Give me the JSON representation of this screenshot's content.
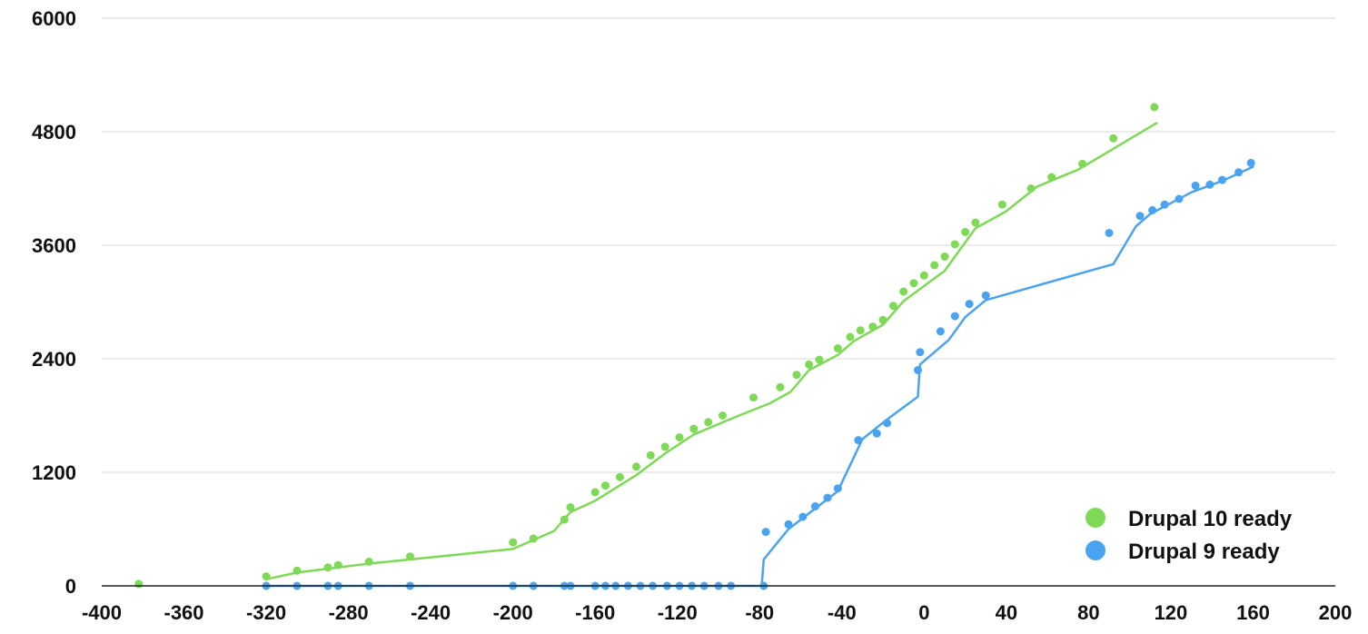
{
  "chart_data": {
    "type": "scatter",
    "title": "",
    "xlabel": "",
    "ylabel": "",
    "xlim": [
      -400,
      200
    ],
    "ylim": [
      0,
      6000
    ],
    "x_ticks": [
      -400,
      -360,
      -320,
      -280,
      -240,
      -200,
      -160,
      -120,
      -80,
      -40,
      0,
      40,
      80,
      120,
      160,
      200
    ],
    "y_ticks": [
      0,
      1200,
      2400,
      3600,
      4800,
      6000
    ],
    "grid": "horizontal",
    "legend_position": "bottom-right",
    "series": [
      {
        "name": "Drupal 10 ready",
        "color": "#7ed957",
        "points": [
          [
            -382,
            20
          ],
          [
            -320,
            100
          ],
          [
            -305,
            160
          ],
          [
            -290,
            195
          ],
          [
            -285,
            220
          ],
          [
            -270,
            255
          ],
          [
            -250,
            310
          ],
          [
            -200,
            460
          ],
          [
            -190,
            500
          ],
          [
            -175,
            700
          ],
          [
            -172,
            830
          ],
          [
            -160,
            990
          ],
          [
            -155,
            1060
          ],
          [
            -148,
            1150
          ],
          [
            -140,
            1260
          ],
          [
            -133,
            1380
          ],
          [
            -126,
            1470
          ],
          [
            -119,
            1570
          ],
          [
            -112,
            1660
          ],
          [
            -105,
            1730
          ],
          [
            -98,
            1800
          ],
          [
            -83,
            1990
          ],
          [
            -70,
            2100
          ],
          [
            -62,
            2230
          ],
          [
            -56,
            2340
          ],
          [
            -51,
            2390
          ],
          [
            -42,
            2510
          ],
          [
            -36,
            2630
          ],
          [
            -31,
            2700
          ],
          [
            -25,
            2740
          ],
          [
            -20,
            2810
          ],
          [
            -15,
            2960
          ],
          [
            -10,
            3110
          ],
          [
            -5,
            3200
          ],
          [
            0,
            3280
          ],
          [
            5,
            3390
          ],
          [
            10,
            3480
          ],
          [
            15,
            3610
          ],
          [
            20,
            3740
          ],
          [
            25,
            3840
          ],
          [
            38,
            4030
          ],
          [
            52,
            4200
          ],
          [
            62,
            4320
          ],
          [
            77,
            4460
          ],
          [
            92,
            4730
          ],
          [
            112,
            5060
          ]
        ],
        "trend": [
          [
            -320,
            70
          ],
          [
            -305,
            140
          ],
          [
            -270,
            235
          ],
          [
            -200,
            390
          ],
          [
            -180,
            580
          ],
          [
            -172,
            780
          ],
          [
            -160,
            900
          ],
          [
            -140,
            1170
          ],
          [
            -126,
            1400
          ],
          [
            -112,
            1600
          ],
          [
            -90,
            1800
          ],
          [
            -75,
            1930
          ],
          [
            -65,
            2050
          ],
          [
            -56,
            2280
          ],
          [
            -42,
            2440
          ],
          [
            -34,
            2590
          ],
          [
            -20,
            2760
          ],
          [
            -10,
            3010
          ],
          [
            10,
            3330
          ],
          [
            25,
            3780
          ],
          [
            40,
            3960
          ],
          [
            55,
            4220
          ],
          [
            75,
            4400
          ],
          [
            113,
            4890
          ]
        ]
      },
      {
        "name": "Drupal 9 ready",
        "color": "#4aa3f0",
        "points": [
          [
            -320,
            0
          ],
          [
            -305,
            0
          ],
          [
            -290,
            0
          ],
          [
            -285,
            0
          ],
          [
            -270,
            0
          ],
          [
            -250,
            0
          ],
          [
            -200,
            0
          ],
          [
            -190,
            0
          ],
          [
            -175,
            0
          ],
          [
            -172,
            0
          ],
          [
            -160,
            0
          ],
          [
            -155,
            0
          ],
          [
            -150,
            0
          ],
          [
            -144,
            0
          ],
          [
            -138,
            0
          ],
          [
            -132,
            0
          ],
          [
            -125,
            0
          ],
          [
            -119,
            0
          ],
          [
            -113,
            0
          ],
          [
            -107,
            0
          ],
          [
            -100,
            0
          ],
          [
            -94,
            0
          ],
          [
            -78,
            0
          ],
          [
            -77,
            570
          ],
          [
            -66,
            650
          ],
          [
            -59,
            730
          ],
          [
            -53,
            840
          ],
          [
            -47,
            930
          ],
          [
            -42,
            1030
          ],
          [
            -32,
            1540
          ],
          [
            -23,
            1610
          ],
          [
            -18,
            1720
          ],
          [
            -3,
            2280
          ],
          [
            -2,
            2470
          ],
          [
            8,
            2690
          ],
          [
            15,
            2850
          ],
          [
            22,
            2980
          ],
          [
            30,
            3070
          ],
          [
            90,
            3730
          ],
          [
            105,
            3910
          ],
          [
            111,
            3970
          ],
          [
            117,
            4030
          ],
          [
            124,
            4090
          ],
          [
            132,
            4230
          ],
          [
            139,
            4240
          ],
          [
            145,
            4290
          ],
          [
            153,
            4370
          ],
          [
            159,
            4470
          ]
        ],
        "trend": [
          [
            -320,
            0
          ],
          [
            -79,
            0
          ],
          [
            -78,
            280
          ],
          [
            -66,
            600
          ],
          [
            -42,
            1000
          ],
          [
            -30,
            1550
          ],
          [
            -18,
            1760
          ],
          [
            -3,
            2000
          ],
          [
            -2,
            2340
          ],
          [
            12,
            2600
          ],
          [
            20,
            2840
          ],
          [
            30,
            3020
          ],
          [
            92,
            3400
          ],
          [
            103,
            3800
          ],
          [
            110,
            3930
          ],
          [
            130,
            4160
          ],
          [
            145,
            4280
          ],
          [
            160,
            4430
          ]
        ]
      }
    ]
  }
}
